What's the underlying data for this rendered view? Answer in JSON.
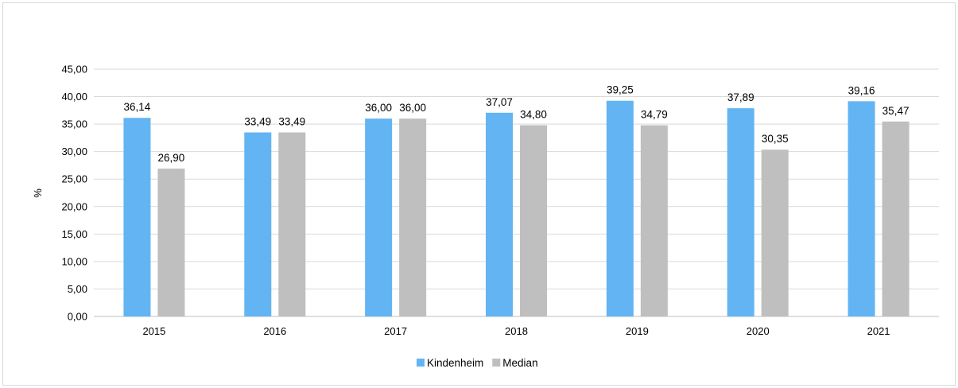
{
  "chart_data": {
    "type": "bar",
    "ylabel": "%",
    "ylim": [
      0,
      45
    ],
    "y_tick_step": 5,
    "y_tick_labels": [
      "0,00",
      "5,00",
      "10,00",
      "15,00",
      "20,00",
      "25,00",
      "30,00",
      "35,00",
      "40,00",
      "45,00"
    ],
    "categories": [
      "2015",
      "2016",
      "2017",
      "2018",
      "2019",
      "2020",
      "2021"
    ],
    "series": [
      {
        "name": "Kindenheim",
        "color": "#63b4f3",
        "values": [
          36.14,
          33.49,
          36.0,
          37.07,
          39.25,
          37.89,
          39.16
        ],
        "labels": [
          "36,14",
          "33,49",
          "36,00",
          "37,07",
          "39,25",
          "37,89",
          "39,16"
        ]
      },
      {
        "name": "Median",
        "color": "#bfbfbf",
        "values": [
          26.9,
          33.49,
          36.0,
          34.8,
          34.79,
          30.35,
          35.47
        ],
        "labels": [
          "26,90",
          "33,49",
          "36,00",
          "34,80",
          "34,79",
          "30,35",
          "35,47"
        ]
      }
    ],
    "grid": true,
    "legend_position": "bottom"
  }
}
